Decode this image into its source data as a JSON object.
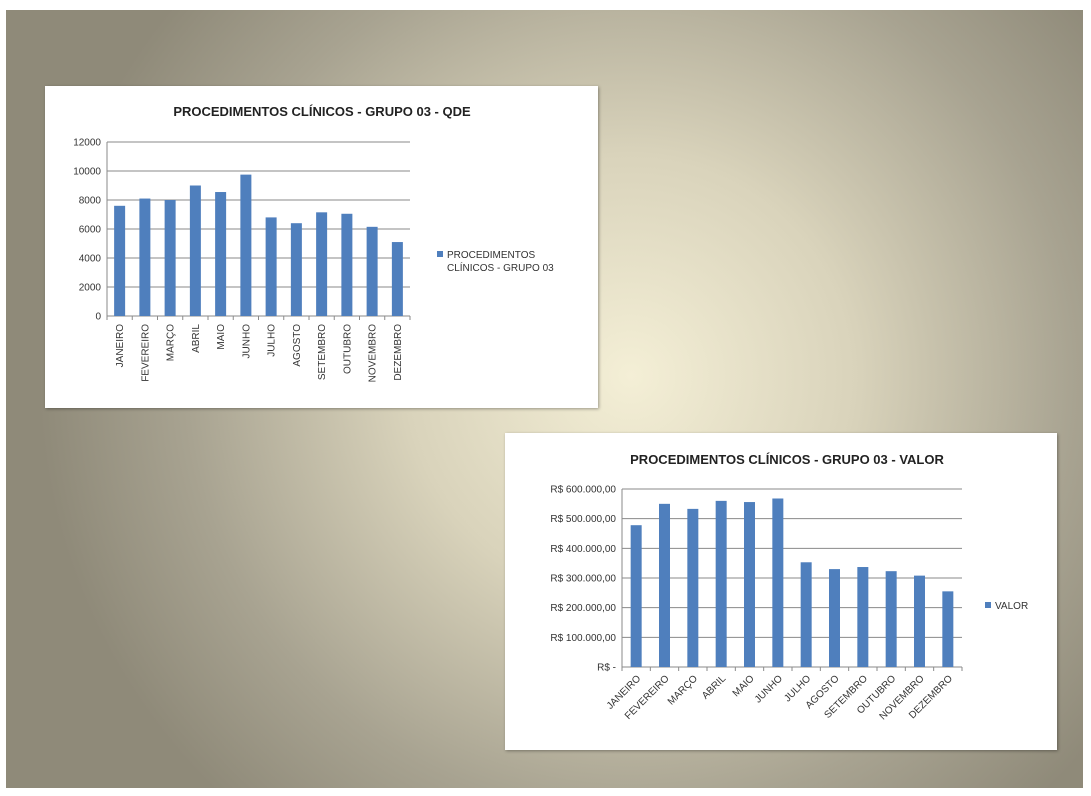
{
  "colors": {
    "bar": "#4f7fbd",
    "grid": "#8a8a8a"
  },
  "chart_data": [
    {
      "type": "bar",
      "title": "PROCEDIMENTOS CLÍNICOS - GRUPO 03 - QDE",
      "categories": [
        "JANEIRO",
        "FEVEREIRO",
        "MARÇO",
        "ABRIL",
        "MAIO",
        "JUNHO",
        "JULHO",
        "AGOSTO",
        "SETEMBRO",
        "OUTUBRO",
        "NOVEMBRO",
        "DEZEMBRO"
      ],
      "series": [
        {
          "name": "PROCEDIMENTOS CLÍNICOS - GRUPO 03",
          "values": [
            7600,
            8100,
            8000,
            9000,
            8550,
            9750,
            6800,
            6400,
            7150,
            7050,
            6150,
            5100
          ]
        }
      ],
      "yticks": [
        "0",
        "2000",
        "4000",
        "6000",
        "8000",
        "10000",
        "12000"
      ],
      "ylim": [
        0,
        12000
      ],
      "legend": {
        "position": "right",
        "lines": [
          "PROCEDIMENTOS",
          "CLÍNICOS - GRUPO 03"
        ]
      },
      "category_label_rotation": "vertical",
      "grid": true
    },
    {
      "type": "bar",
      "title": "PROCEDIMENTOS CLÍNICOS - GRUPO 03 - VALOR",
      "categories": [
        "JANEIRO",
        "FEVEREIRO",
        "MARÇO",
        "ABRIL",
        "MAIO",
        "JUNHO",
        "JULHO",
        "AGOSTO",
        "SETEMBRO",
        "OUTUBRO",
        "NOVEMBRO",
        "DEZEMBRO"
      ],
      "series": [
        {
          "name": "VALOR",
          "values": [
            478000,
            550000,
            533000,
            560000,
            556000,
            568000,
            353000,
            330000,
            337000,
            323000,
            308000,
            255000
          ]
        }
      ],
      "yticks": [
        "R$ -",
        "R$ 100.000,00",
        "R$ 200.000,00",
        "R$ 300.000,00",
        "R$ 400.000,00",
        "R$ 500.000,00",
        "R$ 600.000,00"
      ],
      "ylim": [
        0,
        600000
      ],
      "legend": {
        "position": "right",
        "lines": [
          "VALOR"
        ]
      },
      "category_label_rotation": "diagonal",
      "grid": true
    }
  ]
}
